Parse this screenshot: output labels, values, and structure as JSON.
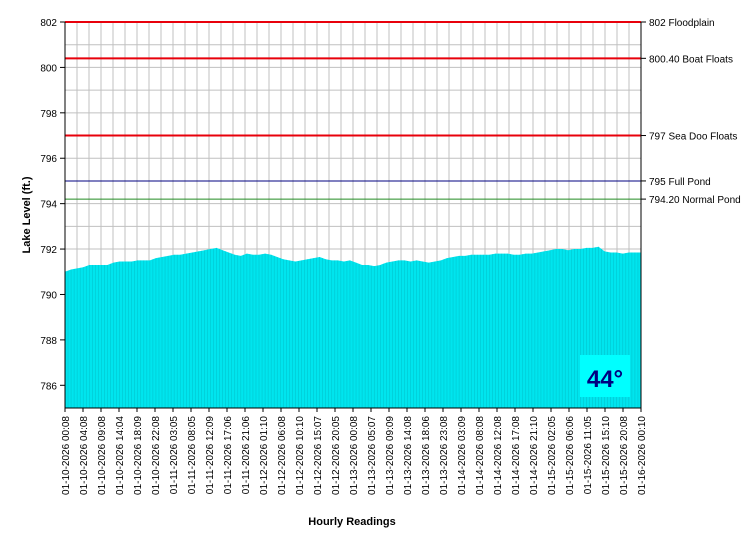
{
  "chart_data": {
    "type": "area",
    "title": "",
    "xlabel": "Hourly Readings",
    "ylabel": "Lake Level (ft.)",
    "ylim": [
      785,
      802
    ],
    "y_ticks": [
      786,
      788,
      790,
      792,
      794,
      796,
      798,
      800,
      802
    ],
    "grid": true,
    "x_tick_labels": [
      "01-10-2026 00:08",
      "01-10-2026 04:08",
      "01-10-2026 09:08",
      "01-10-2026 14:04",
      "01-10-2026 18:09",
      "01-10-2026 22:08",
      "01-11-2026 03:05",
      "01-11-2026 08:05",
      "01-11-2026 12:09",
      "01-11-2026 17:06",
      "01-11-2026 21:06",
      "01-12-2026 01:10",
      "01-12-2026 06:08",
      "01-12-2026 10:10",
      "01-12-2026 15:07",
      "01-12-2026 20:05",
      "01-13-2026 00:08",
      "01-13-2026 05:07",
      "01-13-2026 09:09",
      "01-13-2026 14:08",
      "01-13-2026 18:06",
      "01-13-2026 23:08",
      "01-14-2026 03:09",
      "01-14-2026 08:08",
      "01-14-2026 12:08",
      "01-14-2026 17:08",
      "01-14-2026 21:10",
      "01-15-2026 02:05",
      "01-15-2026 06:06",
      "01-15-2026 11:05",
      "01-15-2026 15:10",
      "01-15-2026 20:08",
      "01-16-2026 00:10"
    ],
    "series": [
      {
        "color": "#00e5ee",
        "values": [
          791.0,
          791.1,
          791.15,
          791.2,
          791.3,
          791.3,
          791.3,
          791.3,
          791.4,
          791.45,
          791.45,
          791.45,
          791.5,
          791.5,
          791.5,
          791.6,
          791.65,
          791.7,
          791.75,
          791.75,
          791.8,
          791.85,
          791.9,
          791.95,
          792.0,
          792.05,
          791.95,
          791.85,
          791.75,
          791.7,
          791.8,
          791.75,
          791.75,
          791.8,
          791.75,
          791.65,
          791.55,
          791.5,
          791.45,
          791.5,
          791.55,
          791.6,
          791.65,
          791.55,
          791.5,
          791.5,
          791.45,
          791.5,
          791.4,
          791.3,
          791.3,
          791.25,
          791.3,
          791.4,
          791.45,
          791.5,
          791.5,
          791.45,
          791.5,
          791.45,
          791.4,
          791.45,
          791.5,
          791.6,
          791.65,
          791.7,
          791.7,
          791.75,
          791.75,
          791.75,
          791.75,
          791.8,
          791.8,
          791.8,
          791.75,
          791.75,
          791.8,
          791.8,
          791.85,
          791.9,
          791.95,
          792.0,
          792.0,
          791.95,
          792.0,
          792.0,
          792.05,
          792.05,
          792.1,
          791.9,
          791.85,
          791.85,
          791.8,
          791.85,
          791.85,
          791.85
        ]
      }
    ],
    "reference_lines": [
      {
        "value": 802,
        "label": "802 Floodplain",
        "color": "#e8000b"
      },
      {
        "value": 800.4,
        "label": "800.40 Boat Floats",
        "color": "#e8000b"
      },
      {
        "value": 797,
        "label": "797 Sea Doo Floats",
        "color": "#e8000b"
      },
      {
        "value": 795,
        "label": "795 Full Pond",
        "color": "#000080"
      },
      {
        "value": 794.2,
        "label": "794.20 Normal Pond",
        "color": "#228b22"
      }
    ],
    "badge": {
      "text": "44°",
      "background": "#00ffff",
      "color": "#000080"
    }
  }
}
